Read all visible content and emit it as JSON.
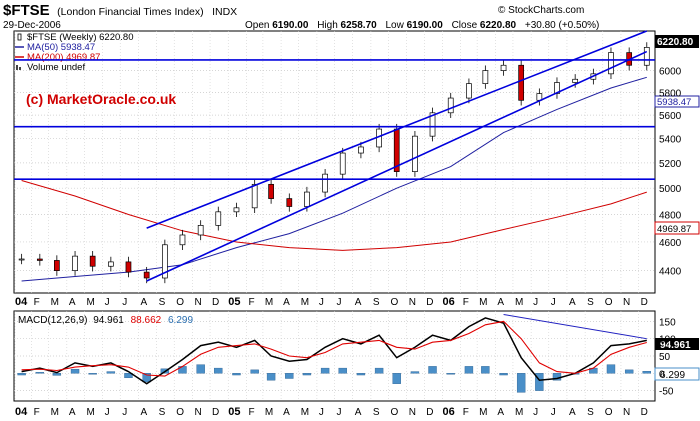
{
  "header": {
    "symbol": "$FTSE",
    "name": "(London Financial Times Index)",
    "exchange": "INDX",
    "date": "29-Dec-2006",
    "open_label": "Open",
    "open": "6190.00",
    "high_label": "High",
    "high": "6258.70",
    "low_label": "Low",
    "low": "6190.00",
    "close_label": "Close",
    "close": "6220.80",
    "change": "+30.80 (+0.50%)",
    "credit": "© StockCharts.com",
    "watermark": "(c) MarketOracle.co.uk"
  },
  "legend": [
    {
      "text": "$FTSE (Weekly) 6220.80",
      "color": "#000000",
      "icon": "candle-icon"
    },
    {
      "text": "MA(50) 5938.47",
      "color": "#2020a0",
      "icon": "line-swatch-icon"
    },
    {
      "text": "MA(200) 4969.87",
      "color": "#d00000",
      "icon": "line-swatch-icon"
    },
    {
      "text": "Volume undef",
      "color": "#000000",
      "icon": "volume-bars-icon"
    }
  ],
  "price_badges": {
    "last": "6220.80",
    "ma50": "5938.47",
    "ma200": "4969.87"
  },
  "macd": {
    "label": "MACD(12,26,9)",
    "macd_value": "94.961",
    "signal_value": "88.662",
    "hist_value": "6.299",
    "badge_macd": "94.961",
    "badge_hist": "6.299",
    "colors": {
      "macd": "#000000",
      "signal": "#e00000",
      "hist": "#4a8fc8"
    }
  },
  "x_labels": [
    "04",
    "F",
    "M",
    "A",
    "M",
    "J",
    "J",
    "A",
    "S",
    "O",
    "N",
    "D",
    "05",
    "F",
    "M",
    "A",
    "M",
    "J",
    "J",
    "A",
    "S",
    "O",
    "N",
    "D",
    "06",
    "F",
    "M",
    "A",
    "M",
    "J",
    "J",
    "A",
    "S",
    "O",
    "N",
    "D"
  ],
  "chart_data": [
    {
      "type": "line",
      "title": "$FTSE (London Financial Times Index) INDX",
      "ylim": [
        4250,
        6380
      ],
      "y_ticks": [
        4400,
        4600,
        4800,
        5000,
        5200,
        5400,
        5600,
        5800,
        6000
      ],
      "y_scale": "log",
      "grid": true,
      "x_start": "2004-01-02",
      "x_end": "2006-12-29",
      "series": [
        {
          "name": "$FTSE (Weekly)",
          "style": "candlestick",
          "x": [
            "2004-01",
            "2004-02",
            "2004-03",
            "2004-04",
            "2004-05",
            "2004-06",
            "2004-07",
            "2004-08",
            "2004-09",
            "2004-10",
            "2004-11",
            "2004-12",
            "2005-01",
            "2005-02",
            "2005-03",
            "2005-04",
            "2005-05",
            "2005-06",
            "2005-07",
            "2005-08",
            "2005-09",
            "2005-10",
            "2005-11",
            "2005-12",
            "2006-01",
            "2006-02",
            "2006-03",
            "2006-04",
            "2006-05",
            "2006-06",
            "2006-07",
            "2006-08",
            "2006-09",
            "2006-10",
            "2006-11",
            "2006-12"
          ],
          "values": [
            4480,
            4470,
            4400,
            4500,
            4430,
            4460,
            4390,
            4350,
            4580,
            4650,
            4720,
            4820,
            4850,
            5030,
            4920,
            4860,
            4970,
            5110,
            5280,
            5330,
            5480,
            5130,
            5420,
            5620,
            5750,
            5880,
            6000,
            6050,
            5730,
            5790,
            5890,
            5920,
            5970,
            6170,
            6050,
            6220
          ]
        },
        {
          "name": "MA(50)",
          "x": [
            "2004-01",
            "2004-04",
            "2004-07",
            "2004-10",
            "2005-01",
            "2005-04",
            "2005-07",
            "2005-10",
            "2006-01",
            "2006-04",
            "2006-07",
            "2006-10",
            "2006-12"
          ],
          "values": [
            4330,
            4360,
            4390,
            4440,
            4560,
            4660,
            4810,
            5000,
            5170,
            5450,
            5650,
            5840,
            5938.47
          ]
        },
        {
          "name": "MA(200)",
          "x": [
            "2004-01",
            "2004-04",
            "2004-07",
            "2004-10",
            "2005-01",
            "2005-04",
            "2005-07",
            "2005-10",
            "2006-01",
            "2006-04",
            "2006-07",
            "2006-10",
            "2006-12"
          ],
          "values": [
            5060,
            4940,
            4800,
            4680,
            4600,
            4560,
            4540,
            4560,
            4600,
            4690,
            4780,
            4880,
            4969.87
          ]
        }
      ],
      "annotations": [
        {
          "type": "horizontal",
          "y": 6100
        },
        {
          "type": "horizontal",
          "y": 5500
        },
        {
          "type": "horizontal",
          "y": 5070
        },
        {
          "type": "trendline",
          "from": [
            "2004-08",
            4330
          ],
          "to": [
            "2006-12",
            6180
          ]
        },
        {
          "type": "trendline",
          "from": [
            "2004-08",
            4700
          ],
          "to": [
            "2006-12",
            6380
          ]
        }
      ]
    },
    {
      "type": "line",
      "title": "MACD(12,26,9)",
      "ylim": [
        -80,
        180
      ],
      "y_ticks": [
        -50,
        0,
        50,
        100,
        150
      ],
      "grid": true,
      "series": [
        {
          "name": "MACD",
          "x": [
            "2004-01",
            "2004-02",
            "2004-03",
            "2004-04",
            "2004-05",
            "2004-06",
            "2004-07",
            "2004-08",
            "2004-09",
            "2004-10",
            "2004-11",
            "2004-12",
            "2005-01",
            "2005-02",
            "2005-03",
            "2005-04",
            "2005-05",
            "2005-06",
            "2005-07",
            "2005-08",
            "2005-09",
            "2005-10",
            "2005-11",
            "2005-12",
            "2006-01",
            "2006-02",
            "2006-03",
            "2006-04",
            "2006-05",
            "2006-06",
            "2006-07",
            "2006-08",
            "2006-09",
            "2006-10",
            "2006-11",
            "2006-12"
          ],
          "values": [
            5,
            15,
            2,
            30,
            20,
            30,
            5,
            -30,
            5,
            40,
            80,
            90,
            75,
            95,
            50,
            35,
            40,
            75,
            100,
            85,
            110,
            45,
            75,
            110,
            95,
            135,
            160,
            145,
            45,
            -20,
            -15,
            0,
            30,
            80,
            85,
            95
          ]
        },
        {
          "name": "Signal",
          "x": [
            "2004-01",
            "2004-02",
            "2004-03",
            "2004-04",
            "2004-05",
            "2004-06",
            "2004-07",
            "2004-08",
            "2004-09",
            "2004-10",
            "2004-11",
            "2004-12",
            "2005-01",
            "2005-02",
            "2005-03",
            "2005-04",
            "2005-05",
            "2005-06",
            "2005-07",
            "2005-08",
            "2005-09",
            "2005-10",
            "2005-11",
            "2005-12",
            "2006-01",
            "2006-02",
            "2006-03",
            "2006-04",
            "2006-05",
            "2006-06",
            "2006-07",
            "2006-08",
            "2006-09",
            "2006-10",
            "2006-11",
            "2006-12"
          ],
          "values": [
            10,
            12,
            8,
            18,
            22,
            25,
            18,
            -5,
            -8,
            20,
            55,
            75,
            80,
            85,
            70,
            50,
            45,
            60,
            85,
            90,
            95,
            75,
            70,
            90,
            95,
            115,
            140,
            150,
            100,
            30,
            5,
            0,
            15,
            55,
            75,
            89
          ]
        },
        {
          "name": "Histogram",
          "style": "bar",
          "x": [
            "2004-01",
            "2004-02",
            "2004-03",
            "2004-04",
            "2004-05",
            "2004-06",
            "2004-07",
            "2004-08",
            "2004-09",
            "2004-10",
            "2004-11",
            "2004-12",
            "2005-01",
            "2005-02",
            "2005-03",
            "2005-04",
            "2005-05",
            "2005-06",
            "2005-07",
            "2005-08",
            "2005-09",
            "2005-10",
            "2005-11",
            "2005-12",
            "2006-01",
            "2006-02",
            "2006-03",
            "2006-04",
            "2006-05",
            "2006-06",
            "2006-07",
            "2006-08",
            "2006-09",
            "2006-10",
            "2006-11",
            "2006-12"
          ],
          "values": [
            -5,
            3,
            -6,
            12,
            -2,
            5,
            -13,
            -25,
            13,
            20,
            25,
            15,
            -5,
            10,
            -20,
            -15,
            -5,
            15,
            15,
            -5,
            15,
            -30,
            5,
            20,
            0,
            20,
            20,
            -5,
            -55,
            -50,
            -20,
            0,
            15,
            25,
            10,
            6
          ]
        }
      ],
      "annotations": [
        {
          "type": "trendline",
          "from": [
            "2006-04",
            170
          ],
          "to": [
            "2006-12",
            100
          ]
        }
      ]
    }
  ]
}
